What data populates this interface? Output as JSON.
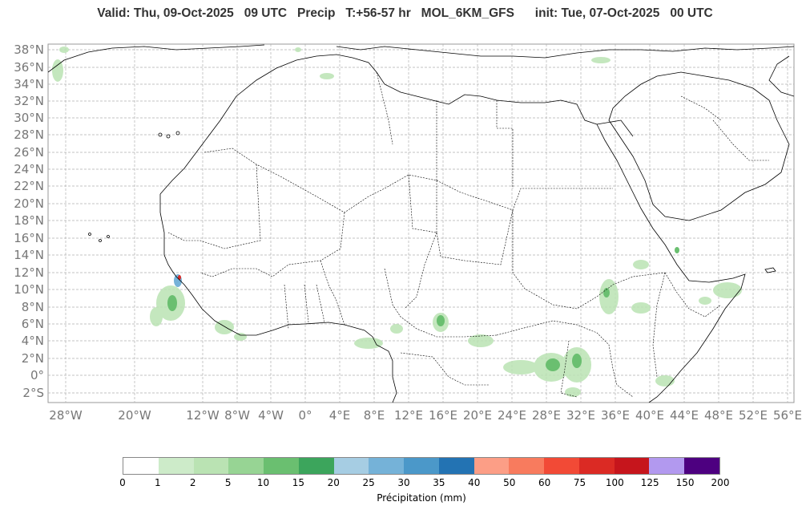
{
  "title": {
    "valid": "Valid: Thu, 09-Oct-2025   09 UTC",
    "product": "Precip   T:+56-57 hr   MOL_6KM_GFS",
    "init": "init: Tue, 07-Oct-2025   00 UTC"
  },
  "map": {
    "lat_labels": [
      "38°N",
      "36°N",
      "34°N",
      "32°N",
      "30°N",
      "28°N",
      "26°N",
      "24°N",
      "22°N",
      "20°N",
      "18°N",
      "16°N",
      "14°N",
      "12°N",
      "10°N",
      "8°N",
      "6°N",
      "4°N",
      "2°N",
      "0°",
      "2°S"
    ],
    "lon_labels": [
      "28°W",
      "20°W",
      "12°W",
      "8°W",
      "4°W",
      "0°",
      "4°E",
      "8°E",
      "12°E",
      "16°E",
      "20°E",
      "24°E",
      "28°E",
      "32°E",
      "36°E",
      "40°E",
      "44°E",
      "48°E",
      "52°E",
      "56°E"
    ],
    "land_color": "#ffffff",
    "border_color": "#000000",
    "grid_color": "#b0b0b0"
  },
  "colorbar": {
    "label": "Précipitation (mm)",
    "ticks": [
      "0",
      "1",
      "2",
      "5",
      "10",
      "15",
      "20",
      "25",
      "30",
      "35",
      "40",
      "50",
      "60",
      "75",
      "100",
      "125",
      "150",
      "200"
    ],
    "colors": [
      "#ffffff",
      "#cdebc9",
      "#bae3b3",
      "#97d494",
      "#6abf70",
      "#3ca55c",
      "#a6cde3",
      "#75b2d8",
      "#4b98c9",
      "#2373b3",
      "#fc9e86",
      "#f87b5e",
      "#f24a36",
      "#db2a24",
      "#c6151c",
      "#b299ef",
      "#4d0080"
    ]
  }
}
